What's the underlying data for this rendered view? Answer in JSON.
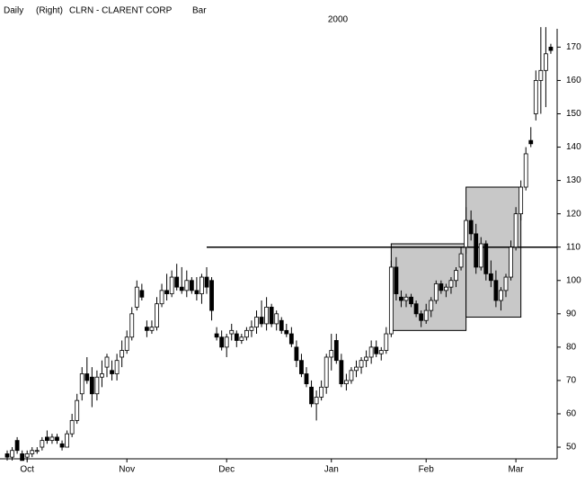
{
  "chart_data": {
    "type": "candlestick",
    "frequency": "Daily",
    "side": "(Right)",
    "title": "CLRN - CLARENT CORP",
    "style": "Bar",
    "subtitle": "2000",
    "categories": [
      null,
      null,
      null,
      null,
      "Oct",
      null,
      null,
      null,
      null,
      null,
      null,
      null,
      null,
      null,
      null,
      null,
      null,
      null,
      null,
      null,
      null,
      null,
      null,
      null,
      "Nov",
      null,
      null,
      null,
      null,
      null,
      null,
      null,
      null,
      null,
      null,
      null,
      null,
      null,
      null,
      null,
      null,
      null,
      null,
      null,
      "Dec",
      null,
      null,
      null,
      null,
      null,
      null,
      null,
      null,
      null,
      null,
      null,
      null,
      null,
      null,
      null,
      null,
      null,
      null,
      null,
      null,
      "Jan",
      null,
      null,
      null,
      null,
      null,
      null,
      null,
      null,
      null,
      null,
      null,
      null,
      null,
      null,
      null,
      null,
      null,
      null,
      "Feb",
      null,
      null,
      null,
      null,
      null,
      null,
      null,
      null,
      null,
      null,
      null,
      null,
      null,
      null,
      null,
      null,
      null,
      "Mar",
      null,
      null,
      null,
      null,
      null,
      null,
      null
    ],
    "ohlc": [
      [
        48,
        49,
        46,
        47
      ],
      [
        47,
        50,
        46,
        49
      ],
      [
        52,
        53,
        48,
        49
      ],
      [
        48,
        49,
        46,
        46
      ],
      [
        47,
        49,
        46,
        48
      ],
      [
        48,
        50,
        47,
        49
      ],
      [
        49,
        50,
        48,
        49
      ],
      [
        50,
        53,
        49,
        52
      ],
      [
        53,
        55,
        51,
        52
      ],
      [
        52,
        54,
        51,
        53
      ],
      [
        53,
        54,
        51,
        52
      ],
      [
        51,
        52,
        49,
        50
      ],
      [
        50,
        55,
        50,
        54
      ],
      [
        54,
        60,
        53,
        58
      ],
      [
        58,
        66,
        57,
        64
      ],
      [
        66,
        74,
        64,
        72
      ],
      [
        72,
        77,
        69,
        70
      ],
      [
        71,
        74,
        62,
        66
      ],
      [
        66,
        73,
        64,
        71
      ],
      [
        71,
        76,
        68,
        72
      ],
      [
        74,
        78,
        71,
        77
      ],
      [
        73,
        76,
        70,
        72
      ],
      [
        72,
        78,
        70,
        76
      ],
      [
        77,
        82,
        74,
        79
      ],
      [
        79,
        85,
        78,
        83
      ],
      [
        83,
        92,
        82,
        90
      ],
      [
        92,
        100,
        91,
        98
      ],
      [
        97,
        99,
        94,
        95
      ],
      [
        86,
        88,
        83,
        85
      ],
      [
        85,
        88,
        84,
        86
      ],
      [
        86,
        95,
        85,
        93
      ],
      [
        93,
        99,
        92,
        97
      ],
      [
        97,
        102,
        94,
        96
      ],
      [
        96,
        103,
        95,
        101
      ],
      [
        101,
        105,
        97,
        98
      ],
      [
        98,
        104,
        96,
        97
      ],
      [
        97,
        103,
        95,
        100
      ],
      [
        100,
        101,
        96,
        97
      ],
      [
        97,
        101,
        94,
        96
      ],
      [
        96,
        102,
        93,
        101
      ],
      [
        101,
        104,
        96,
        98
      ],
      [
        100,
        101,
        88,
        91
      ],
      [
        84,
        86,
        82,
        83
      ],
      [
        83,
        85,
        79,
        80
      ],
      [
        80,
        84,
        77,
        83
      ],
      [
        84,
        87,
        82,
        85
      ],
      [
        84,
        85,
        80,
        82
      ],
      [
        82,
        84,
        81,
        83
      ],
      [
        83,
        86,
        82,
        85
      ],
      [
        85,
        88,
        83,
        86
      ],
      [
        86,
        91,
        84,
        89
      ],
      [
        89,
        94,
        86,
        87
      ],
      [
        87,
        95,
        85,
        92
      ],
      [
        92,
        93,
        86,
        87
      ],
      [
        87,
        91,
        85,
        90
      ],
      [
        88,
        89,
        84,
        85
      ],
      [
        85,
        87,
        83,
        84
      ],
      [
        84,
        86,
        80,
        81
      ],
      [
        80,
        82,
        74,
        76
      ],
      [
        76,
        78,
        71,
        72
      ],
      [
        72,
        74,
        68,
        69
      ],
      [
        68,
        70,
        62,
        63
      ],
      [
        63,
        67,
        58,
        65
      ],
      [
        65,
        70,
        64,
        68
      ],
      [
        68,
        78,
        66,
        77
      ],
      [
        77,
        84,
        73,
        79
      ],
      [
        82,
        84,
        75,
        76
      ],
      [
        76,
        78,
        68,
        69
      ],
      [
        69,
        72,
        67,
        70
      ],
      [
        70,
        74,
        69,
        73
      ],
      [
        73,
        76,
        71,
        74
      ],
      [
        74,
        77,
        72,
        76
      ],
      [
        76,
        79,
        74,
        77
      ],
      [
        77,
        82,
        75,
        80
      ],
      [
        80,
        82,
        77,
        78
      ],
      [
        78,
        80,
        76,
        79
      ],
      [
        79,
        86,
        78,
        84
      ],
      [
        84,
        106,
        83,
        104
      ],
      [
        104,
        107,
        94,
        96
      ],
      [
        95,
        97,
        92,
        94
      ],
      [
        94,
        96,
        92,
        95
      ],
      [
        95,
        96,
        92,
        93
      ],
      [
        93,
        94,
        89,
        90
      ],
      [
        90,
        91,
        86,
        88
      ],
      [
        88,
        93,
        87,
        91
      ],
      [
        91,
        95,
        89,
        94
      ],
      [
        94,
        100,
        93,
        99
      ],
      [
        99,
        100,
        96,
        97
      ],
      [
        97,
        99,
        95,
        98
      ],
      [
        98,
        101,
        96,
        100
      ],
      [
        100,
        104,
        98,
        103
      ],
      [
        104,
        110,
        103,
        108
      ],
      [
        110,
        122,
        108,
        118
      ],
      [
        118,
        121,
        112,
        114
      ],
      [
        114,
        117,
        102,
        104
      ],
      [
        104,
        113,
        103,
        111
      ],
      [
        111,
        112,
        100,
        102
      ],
      [
        102,
        106,
        98,
        100
      ],
      [
        100,
        103,
        92,
        94
      ],
      [
        94,
        98,
        91,
        97
      ],
      [
        97,
        102,
        95,
        101
      ],
      [
        101,
        112,
        100,
        110
      ],
      [
        110,
        122,
        109,
        120
      ],
      [
        120,
        130,
        118,
        128
      ],
      [
        128,
        140,
        127,
        138
      ],
      [
        142,
        146,
        140,
        141
      ],
      [
        150,
        163,
        148,
        160
      ],
      [
        160,
        176,
        150,
        163
      ],
      [
        163,
        176,
        152,
        168
      ],
      [
        170,
        171,
        168,
        169
      ]
    ],
    "hline": {
      "value": 110,
      "from": 40
    },
    "boxes": [
      {
        "from": 77,
        "to": 92,
        "low": 85,
        "high": 111
      },
      {
        "from": 92,
        "to": 103,
        "low": 89,
        "high": 128
      }
    ],
    "ylim": [
      46.5,
      175.5
    ],
    "yticks": [
      50,
      60,
      70,
      80,
      90,
      100,
      110,
      120,
      130,
      140,
      150,
      160,
      170
    ]
  }
}
